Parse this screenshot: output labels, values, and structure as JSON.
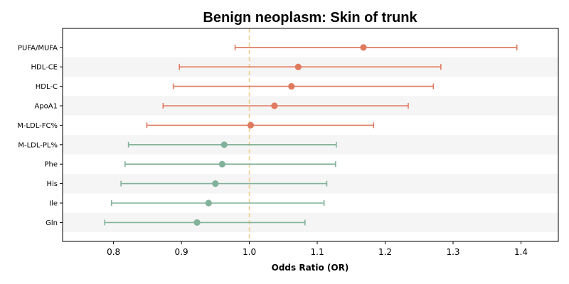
{
  "chart_data": {
    "type": "forest",
    "title": "Benign neoplasm: Skin of trunk",
    "xlabel": "Odds Ratio (OR)",
    "ylabel": "",
    "xlim": [
      0.725,
      1.455
    ],
    "xticks": [
      0.8,
      0.9,
      1.0,
      1.1,
      1.2,
      1.3,
      1.4
    ],
    "xtick_labels": [
      "0.8",
      "0.9",
      "1.0",
      "1.1",
      "1.2",
      "1.3",
      "1.4"
    ],
    "reference_line": 1.0,
    "grid": false,
    "alternating_row_shading": true,
    "colors": {
      "positive": "#e07a5f",
      "negative": "#81b29a",
      "reference_line": "#f2cc8f",
      "row_shade": "#f5f5f5"
    },
    "categories": [
      "PUFA/MUFA",
      "HDL-CE",
      "HDL-C",
      "ApoA1",
      "M-LDL-FC%",
      "M-LDL-PL%",
      "Phe",
      "His",
      "Ile",
      "Gln"
    ],
    "or": [
      1.168,
      1.072,
      1.062,
      1.037,
      1.002,
      0.963,
      0.96,
      0.95,
      0.94,
      0.923
    ],
    "ci_lower": [
      0.979,
      0.897,
      0.888,
      0.873,
      0.849,
      0.822,
      0.817,
      0.811,
      0.797,
      0.787
    ],
    "ci_upper": [
      1.394,
      1.282,
      1.271,
      1.234,
      1.183,
      1.128,
      1.127,
      1.114,
      1.11,
      1.082
    ]
  }
}
